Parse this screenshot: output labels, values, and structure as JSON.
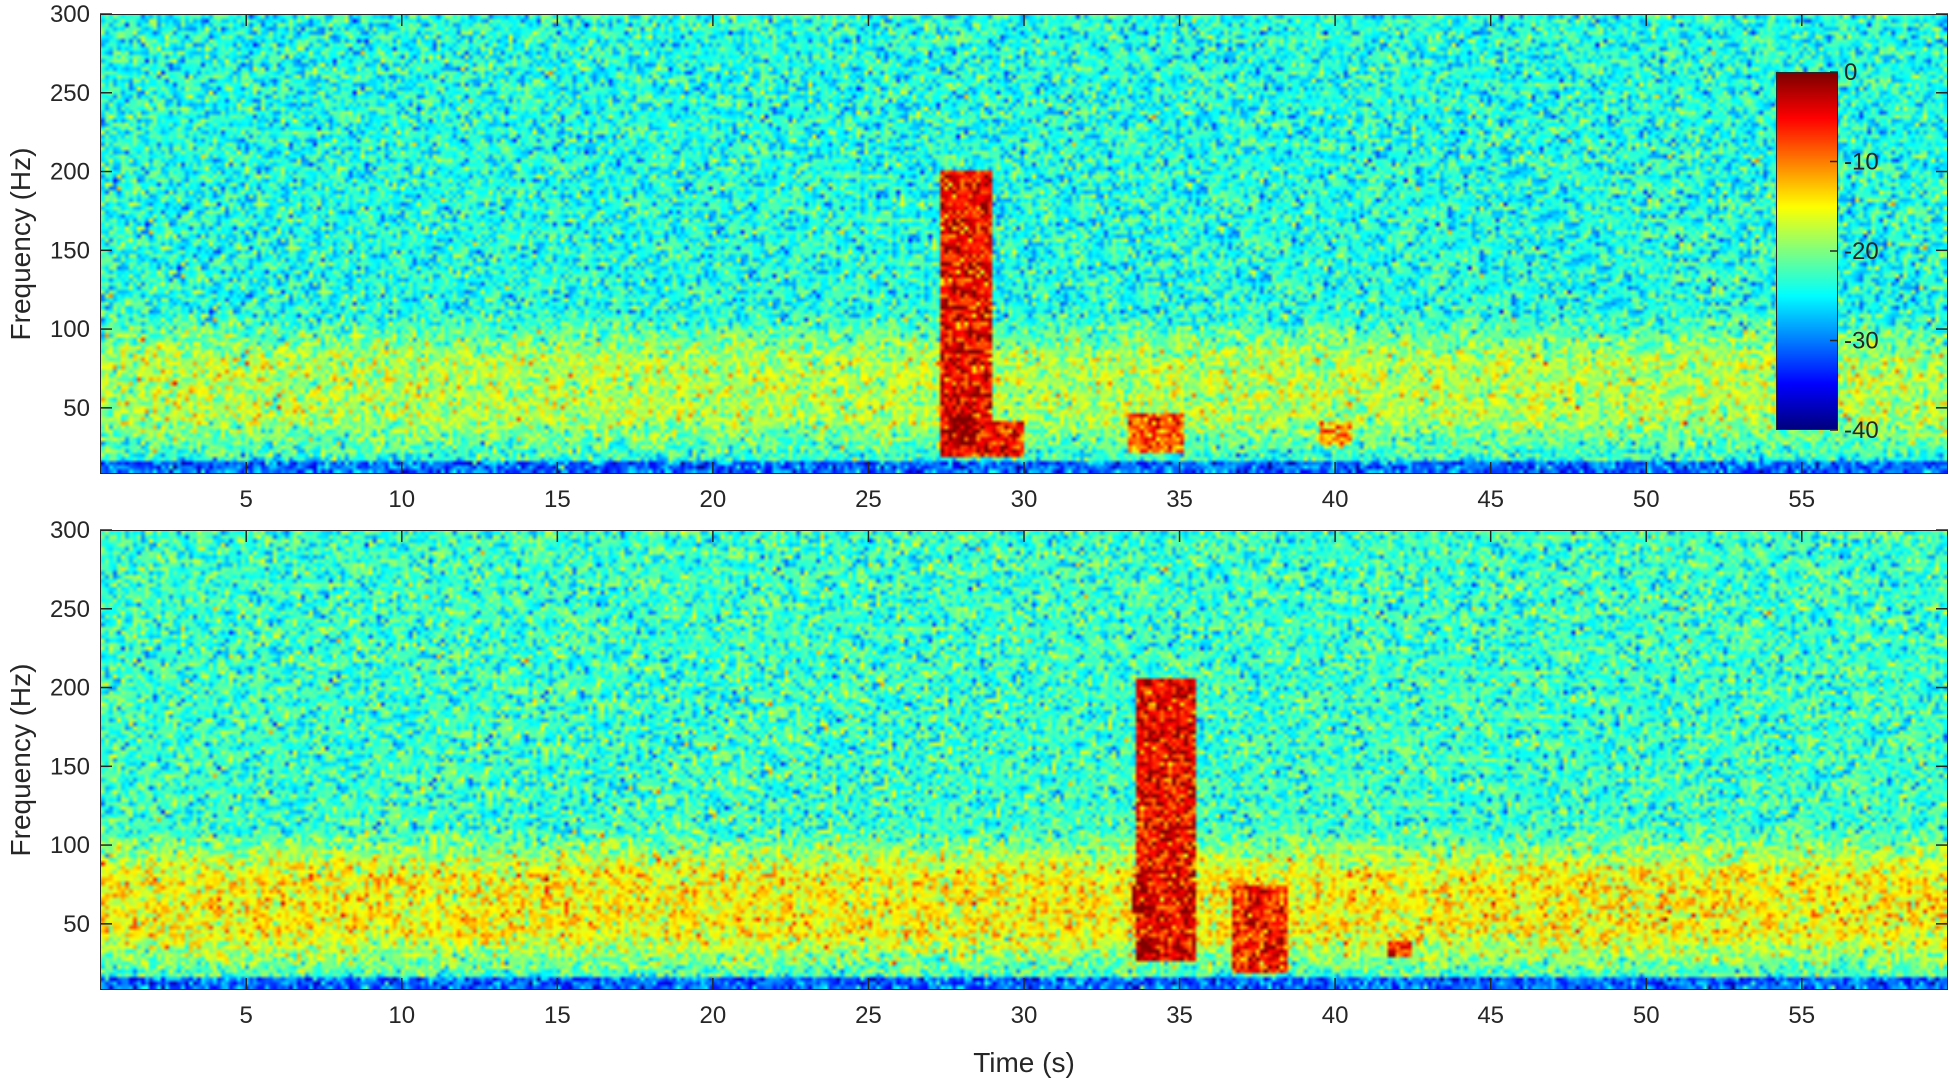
{
  "chart_data": [
    {
      "type": "heatmap",
      "title": "",
      "xlabel": "",
      "ylabel": "Frequency (Hz)",
      "xlim": [
        0.3,
        59.7
      ],
      "ylim": [
        8,
        300
      ],
      "xticks": [
        5,
        10,
        15,
        20,
        25,
        30,
        35,
        40,
        45,
        50,
        55
      ],
      "yticks": [
        50,
        100,
        150,
        200,
        250,
        300
      ],
      "colorbar": {
        "label": "",
        "range": [
          -40,
          0
        ],
        "ticks": [
          0,
          -10,
          -20,
          -30,
          -40
        ],
        "colormap": "jet",
        "position": "top-right"
      },
      "background_level_db": -24,
      "low_frequency_band": {
        "freq_range_hz": [
          15,
          110
        ],
        "level_db": -18
      },
      "events": [
        {
          "time_range_s": [
            27.3,
            29.0
          ],
          "freq_range_hz": [
            20,
            200
          ],
          "peak_level_db": -5
        },
        {
          "time_range_s": [
            27.5,
            28.5
          ],
          "freq_range_hz": [
            25,
            45
          ],
          "peak_level_db": -1
        },
        {
          "time_range_s": [
            27.3,
            30.0
          ],
          "freq_range_hz": [
            18,
            40
          ],
          "peak_level_db": -6
        },
        {
          "time_range_s": [
            33.4,
            35.2
          ],
          "freq_range_hz": [
            20,
            45
          ],
          "peak_level_db": -9
        },
        {
          "time_range_s": [
            39.5,
            40.5
          ],
          "freq_range_hz": [
            25,
            40
          ],
          "peak_level_db": -12
        }
      ]
    },
    {
      "type": "heatmap",
      "title": "",
      "xlabel": "Time (s)",
      "ylabel": "Frequency (Hz)",
      "xlim": [
        0.3,
        59.7
      ],
      "ylim": [
        8,
        300
      ],
      "xticks": [
        5,
        10,
        15,
        20,
        25,
        30,
        35,
        40,
        45,
        50,
        55
      ],
      "yticks": [
        50,
        100,
        150,
        200,
        250,
        300
      ],
      "background_level_db": -23,
      "low_frequency_band": {
        "freq_range_hz": [
          15,
          110
        ],
        "level_db": -15
      },
      "events": [
        {
          "time_range_s": [
            33.6,
            35.5
          ],
          "freq_range_hz": [
            25,
            205
          ],
          "peak_level_db": -5
        },
        {
          "time_range_s": [
            33.5,
            34.3
          ],
          "freq_range_hz": [
            55,
            75
          ],
          "peak_level_db": -2
        },
        {
          "time_range_s": [
            33.6,
            34.2
          ],
          "freq_range_hz": [
            25,
            40
          ],
          "peak_level_db": -2
        },
        {
          "time_range_s": [
            36.7,
            38.5
          ],
          "freq_range_hz": [
            18,
            75
          ],
          "peak_level_db": -6
        },
        {
          "time_range_s": [
            41.7,
            42.5
          ],
          "freq_range_hz": [
            28,
            38
          ],
          "peak_level_db": -6
        }
      ]
    }
  ]
}
